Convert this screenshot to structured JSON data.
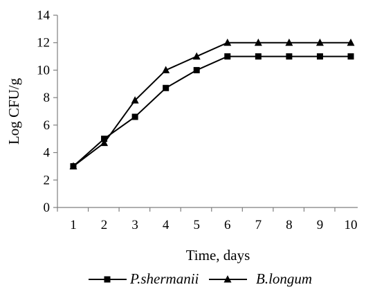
{
  "chart_data": {
    "type": "line",
    "xlabel": "Time, days",
    "ylabel": "Log CFU/g",
    "x": [
      1,
      2,
      3,
      4,
      5,
      6,
      7,
      8,
      9,
      10
    ],
    "ylim": [
      0,
      14
    ],
    "yticks": [
      0,
      2,
      4,
      6,
      8,
      10,
      12,
      14
    ],
    "grid": false,
    "legend_position": "bottom",
    "series": [
      {
        "name": "P.shermanii",
        "marker": "square",
        "color": "#000000",
        "values": [
          3.0,
          5.0,
          6.6,
          8.7,
          10.0,
          11.0,
          11.0,
          11.0,
          11.0,
          11.0
        ]
      },
      {
        "name": "B.longum",
        "marker": "triangle",
        "color": "#000000",
        "values": [
          3.0,
          4.7,
          7.8,
          10.0,
          11.0,
          12.0,
          12.0,
          12.0,
          12.0,
          12.0
        ]
      }
    ]
  }
}
